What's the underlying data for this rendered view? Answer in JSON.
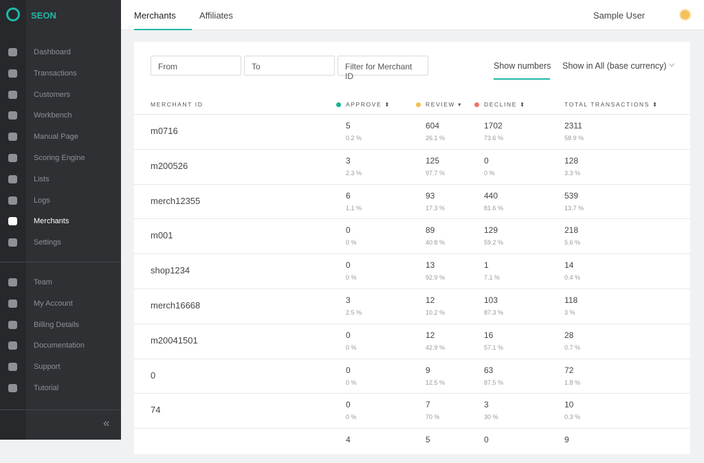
{
  "sidebar": {
    "brand": "SEON",
    "nav_main": [
      "Dashboard",
      "Transactions",
      "Customers",
      "Workbench",
      "Manual Page",
      "Scoring Engine",
      "Lists",
      "Logs",
      "Merchants",
      "Settings"
    ],
    "nav_secondary": [
      "Team",
      "My Account",
      "Billing Details",
      "Documentation",
      "Support",
      "Tutorial"
    ],
    "active": "Merchants",
    "collapse": "«"
  },
  "topbar": {
    "tabs": [
      "Merchants",
      "Affiliates"
    ],
    "active_tab": "Merchants",
    "user": "Sample User"
  },
  "filters": {
    "from": "From",
    "to": "To",
    "merchant": "Filter for Merchant ID",
    "show_numbers": "Show numbers",
    "currency": "Show in All (base currency)"
  },
  "table": {
    "columns": [
      {
        "label": "MERCHANT ID"
      },
      {
        "label": "APPROVE",
        "dot": "#1ab394",
        "sort": "⬍"
      },
      {
        "label": "REVIEW",
        "dot": "#f2c04d",
        "sort": "▾"
      },
      {
        "label": "DECLINE",
        "dot": "#f0716d",
        "sort": "⬍"
      },
      {
        "label": "TOTAL TRANSACTIONS",
        "sort": "⬍"
      }
    ],
    "rows": [
      {
        "id": "m0716",
        "cells": [
          [
            5,
            "0.2 %"
          ],
          [
            604,
            "26.1 %"
          ],
          [
            1702,
            "73.6 %"
          ],
          [
            2311,
            "58.9 %"
          ]
        ]
      },
      {
        "id": "m200526",
        "cells": [
          [
            3,
            "2.3 %"
          ],
          [
            125,
            "97.7 %"
          ],
          [
            0,
            "0 %"
          ],
          [
            128,
            "3.3 %"
          ]
        ]
      },
      {
        "id": "merch12355",
        "cells": [
          [
            6,
            "1.1 %"
          ],
          [
            93,
            "17.3 %"
          ],
          [
            440,
            "81.6 %"
          ],
          [
            539,
            "13.7 %"
          ]
        ]
      },
      {
        "id": "m001",
        "cells": [
          [
            0,
            "0 %"
          ],
          [
            89,
            "40.8 %"
          ],
          [
            129,
            "59.2 %"
          ],
          [
            218,
            "5.6 %"
          ]
        ]
      },
      {
        "id": "shop1234",
        "cells": [
          [
            0,
            "0 %"
          ],
          [
            13,
            "92.9 %"
          ],
          [
            1,
            "7.1 %"
          ],
          [
            14,
            "0.4 %"
          ]
        ]
      },
      {
        "id": "merch16668",
        "cells": [
          [
            3,
            "2.5 %"
          ],
          [
            12,
            "10.2 %"
          ],
          [
            103,
            "87.3 %"
          ],
          [
            118,
            "3 %"
          ]
        ]
      },
      {
        "id": "m20041501",
        "cells": [
          [
            0,
            "0 %"
          ],
          [
            12,
            "42.9 %"
          ],
          [
            16,
            "57.1 %"
          ],
          [
            28,
            "0.7 %"
          ]
        ]
      },
      {
        "id": "0",
        "cells": [
          [
            0,
            "0 %"
          ],
          [
            9,
            "12.5 %"
          ],
          [
            63,
            "87.5 %"
          ],
          [
            72,
            "1.8 %"
          ]
        ]
      },
      {
        "id": "74",
        "cells": [
          [
            0,
            "0 %"
          ],
          [
            7,
            "70 %"
          ],
          [
            3,
            "30 %"
          ],
          [
            10,
            "0.3 %"
          ]
        ]
      },
      {
        "cells": [
          [
            4
          ],
          [
            5
          ],
          [
            0
          ],
          [
            9
          ]
        ]
      }
    ]
  }
}
